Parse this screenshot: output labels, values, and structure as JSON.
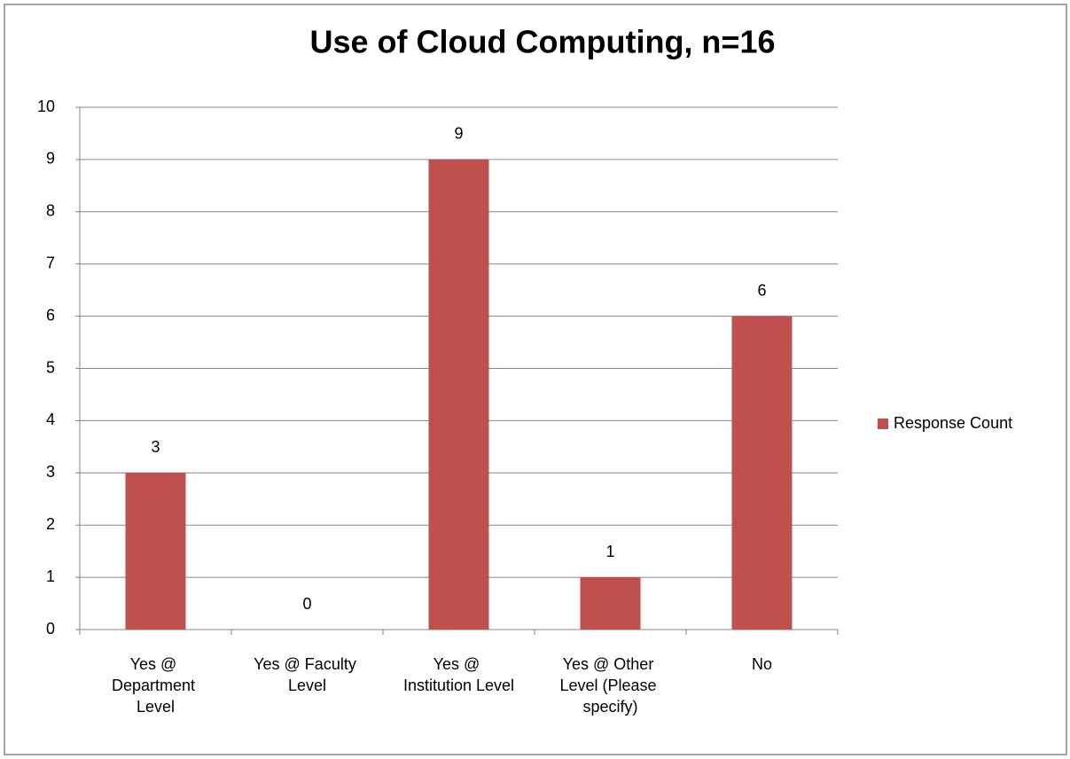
{
  "chart_data": {
    "type": "bar",
    "title": "Use of Cloud Computing, n=16",
    "categories": [
      "Yes @ Department Level",
      "Yes @ Faculty Level",
      "Yes @ Institution Level",
      "Yes @ Other Level (Please specify)",
      "No"
    ],
    "series": [
      {
        "name": "Response Count",
        "color": "#c0504d",
        "values": [
          3,
          0,
          9,
          1,
          6
        ]
      }
    ],
    "ylim": [
      0,
      10
    ],
    "yticks": [
      0,
      1,
      2,
      3,
      4,
      5,
      6,
      7,
      8,
      9,
      10
    ],
    "grid": true,
    "legend": "right"
  }
}
